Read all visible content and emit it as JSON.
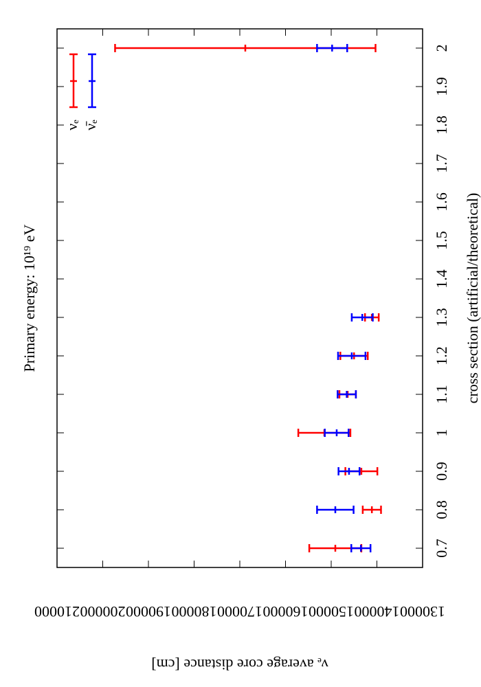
{
  "chart_data": {
    "type": "errorbar",
    "title": "Primary energy: 10¹⁹ eV",
    "x_label": "cross section (artificial/theoretical)",
    "y_label": "νₑ average core distance [cm]",
    "x": [
      0.7,
      0.8,
      0.9,
      1,
      1.1,
      1.2,
      1.3,
      2
    ],
    "series": [
      {
        "name": "νₑ",
        "color": "#ff0000",
        "values": [
          149100,
          141100,
          143400,
          151500,
          146400,
          145000,
          141100,
          168800
        ],
        "errors": [
          5700,
          2000,
          3500,
          5700,
          1800,
          3000,
          1500,
          28500
        ]
      },
      {
        "name": "ν̄ₑ",
        "color": "#0000ff",
        "values": [
          143500,
          149100,
          146100,
          148800,
          146600,
          145500,
          143200,
          149800
        ],
        "errors": [
          2100,
          4000,
          2300,
          2600,
          2000,
          3000,
          2300,
          3300
        ]
      }
    ],
    "xlim": [
      0.65,
      2.05
    ],
    "xticks": [
      0.7,
      0.8,
      0.9,
      1,
      1.1,
      1.2,
      1.3,
      1.4,
      1.5,
      1.6,
      1.7,
      1.8,
      1.9,
      2
    ],
    "ylim": [
      130000,
      210000
    ],
    "yticks": [
      130000,
      140000,
      150000,
      160000,
      170000,
      180000,
      190000,
      200000,
      210000
    ],
    "legend": "top left",
    "grid": false
  }
}
